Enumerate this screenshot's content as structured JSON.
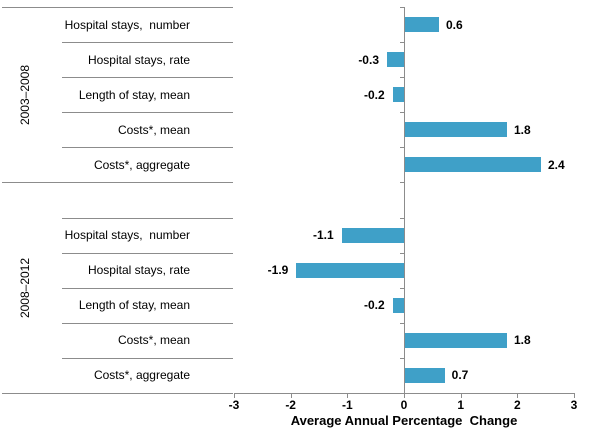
{
  "chart_data": {
    "type": "bar",
    "orientation": "horizontal",
    "title": "",
    "xlabel": "Average Annual Percentage  Change",
    "ylabel": "",
    "xlim": [
      -3,
      3
    ],
    "xticks": [
      -3,
      -2,
      -1,
      0,
      1,
      2,
      3
    ],
    "xtick_labels": [
      "-3",
      "-2",
      "-1",
      "0",
      "1",
      "2",
      "3"
    ],
    "grid": false,
    "legend": false,
    "bar_color": "#3FA0C8",
    "axis_line_color": "#8C8C8C",
    "groups": [
      {
        "label": "2003–2008",
        "categories": [
          "Hospital stays,  number",
          "Hospital stays, rate",
          "Length of stay, mean",
          "Costs*, mean",
          "Costs*, aggregate"
        ],
        "values": [
          0.6,
          -0.3,
          -0.2,
          1.8,
          2.4
        ],
        "value_labels": [
          "0.6",
          "-0.3",
          "-0.2",
          "1.8",
          "2.4"
        ]
      },
      {
        "label": "2008–2012",
        "categories": [
          "Hospital stays,  number",
          "Hospital stays, rate",
          "Length of stay, mean",
          "Costs*, mean",
          "Costs*, aggregate"
        ],
        "values": [
          -1.1,
          -1.9,
          -0.2,
          1.8,
          0.7
        ],
        "value_labels": [
          "-1.1",
          "-1.9",
          "-0.2",
          "1.8",
          "0.7"
        ]
      }
    ]
  }
}
